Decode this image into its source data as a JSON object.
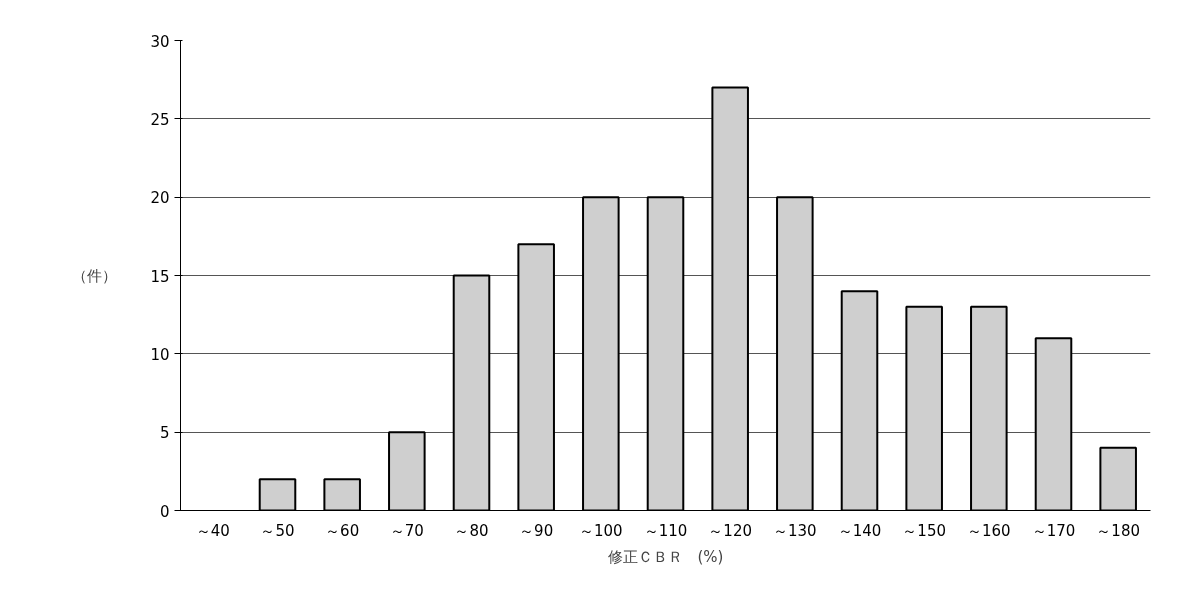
{
  "chart_data": {
    "type": "bar",
    "xlabel": "修正ＣＢＲ　(%)",
    "ylabel": "（件）",
    "categories": [
      "～40",
      "～50",
      "～60",
      "～70",
      "～80",
      "～90",
      "～100",
      "～110",
      "～120",
      "～130",
      "～140",
      "～150",
      "～160",
      "～170",
      "～180"
    ],
    "values": [
      0,
      2,
      2,
      5,
      15,
      17,
      20,
      20,
      27,
      20,
      14,
      13,
      13,
      11,
      4
    ],
    "color": "#cfcfcf",
    "ylim": [
      0,
      30
    ],
    "yticks": [
      0,
      5,
      10,
      15,
      20,
      25,
      30
    ],
    "grid": "y"
  }
}
